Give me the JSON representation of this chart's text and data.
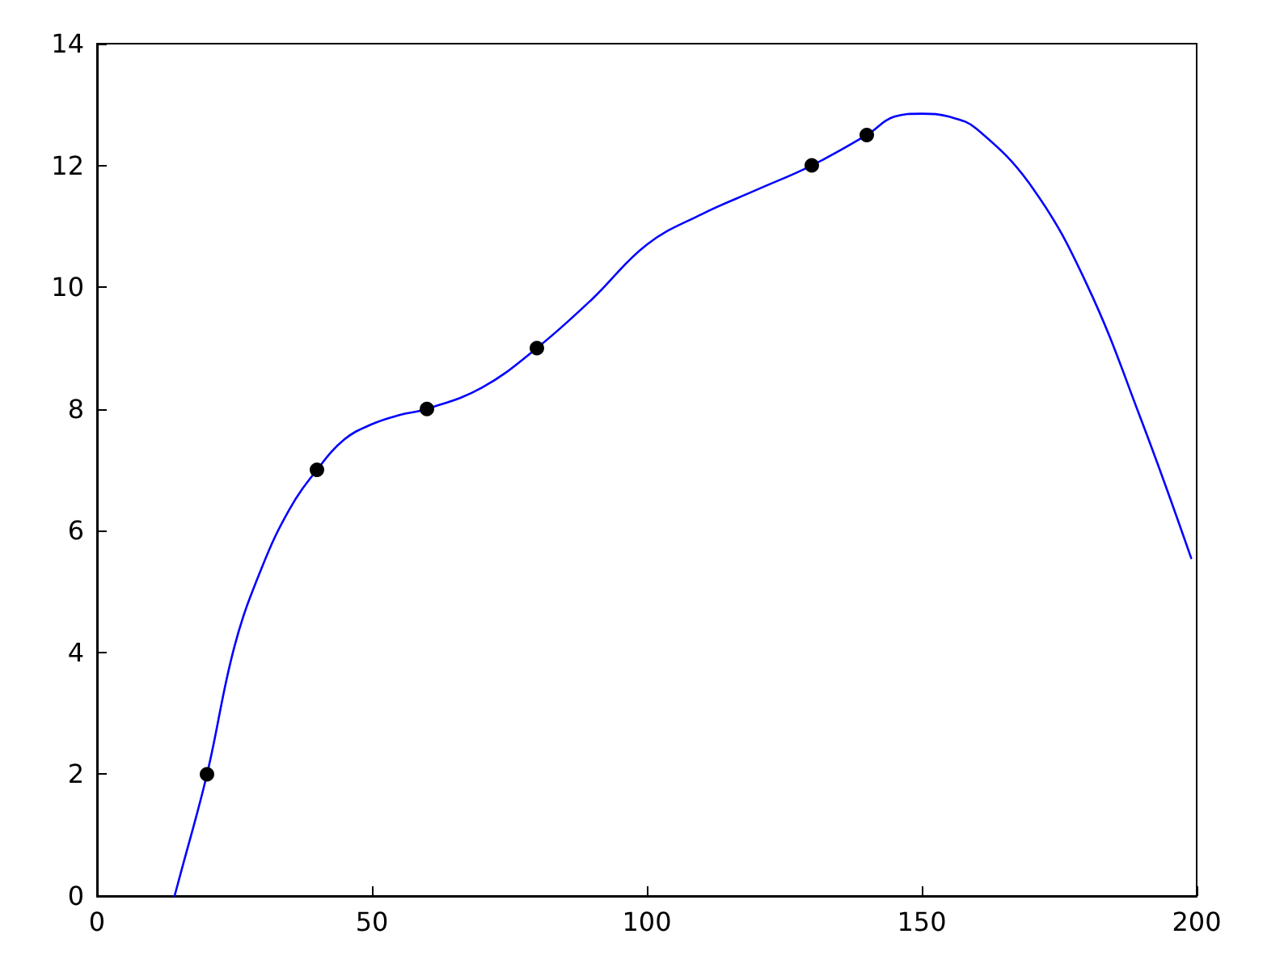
{
  "chart_data": {
    "type": "line",
    "xlim": [
      0,
      200
    ],
    "ylim": [
      0,
      14
    ],
    "xticks": [
      0,
      50,
      100,
      150,
      200
    ],
    "yticks": [
      0,
      2,
      4,
      6,
      8,
      10,
      12,
      14
    ],
    "grid": false,
    "series": [
      {
        "color": "#0000ff",
        "marker": "none",
        "x": [
          14.1,
          15,
          20,
          25,
          30,
          35,
          40,
          45,
          50,
          55,
          60,
          70,
          80,
          90,
          100,
          110,
          120,
          130,
          140,
          145,
          150,
          155,
          160,
          170,
          180,
          190,
          199
        ],
        "values": [
          0,
          0.3,
          2,
          4.1,
          5.4,
          6.35,
          7,
          7.5,
          7.75,
          7.9,
          8,
          8.35,
          9,
          9.8,
          10.7,
          11.2,
          11.6,
          12,
          12.5,
          12.8,
          12.85,
          12.8,
          12.6,
          11.65,
          10.05,
          7.8,
          5.55
        ]
      },
      {
        "type": "scatter",
        "color": "#000000",
        "marker": "circle",
        "x": [
          20,
          40,
          60,
          80,
          130,
          140
        ],
        "values": [
          2,
          7,
          8,
          9,
          12,
          12.5
        ]
      }
    ]
  }
}
